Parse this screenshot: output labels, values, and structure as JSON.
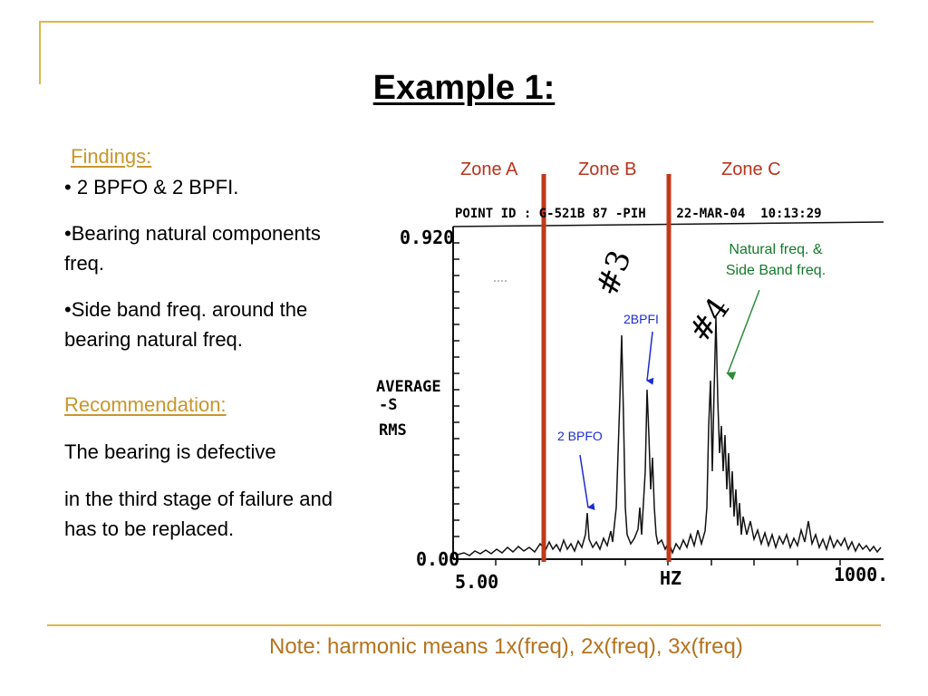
{
  "slide": {
    "title": "Example 1:",
    "findings": {
      "heading": "Findings:",
      "items": [
        "• 2 BPFO & 2 BPFI.",
        "•Bearing natural components",
        "freq.",
        "•Side band freq. around the",
        "bearing natural freq."
      ]
    },
    "recommendation": {
      "heading": "Recommendation:",
      "line1": "The bearing is defective",
      "line2a": "in the third stage of failure and",
      "line2b": "has to be replaced."
    },
    "note": "Note: harmonic means 1x(freq), 2x(freq), 3x(freq)"
  },
  "spectrum": {
    "header": "POINT ID : G-521B 87 -PIH    22-MAR-04  10:13:29",
    "y_max": "0.920",
    "y_min": "0.00",
    "x_min": "5.00",
    "x_unit": "HZ",
    "x_max": "1000.",
    "side_label": [
      "AVERAGE",
      "-S",
      "RMS"
    ],
    "handwritten_3": "#3",
    "handwritten_4": "#4",
    "zones": [
      "Zone A",
      "Zone B",
      "Zone C"
    ],
    "annotations": {
      "bpfi": "2BPFI",
      "bpfo": "2 BPFO",
      "natural_line1": "Natural freq. &",
      "natural_line2": "Side Band freq."
    },
    "colors": {
      "zone_line": "#c0391b",
      "blue_arrow": "#1c2bd4",
      "green_arrow": "#2e8b3a"
    }
  }
}
